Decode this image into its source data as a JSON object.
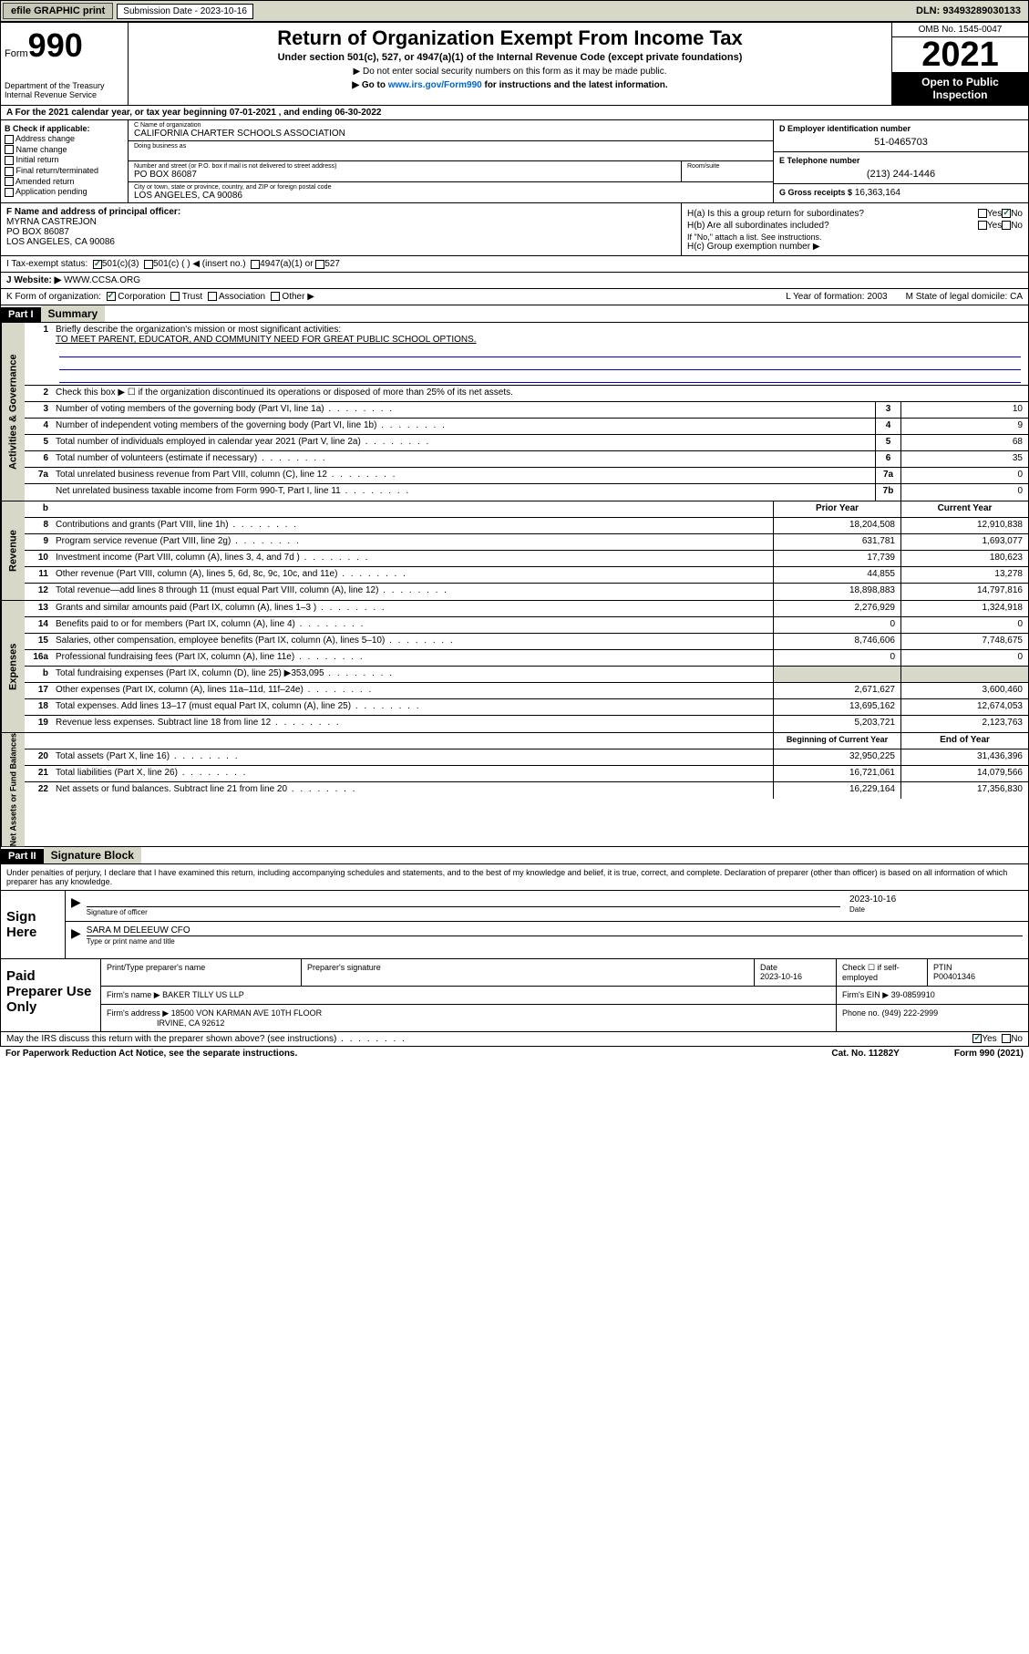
{
  "topbar": {
    "efile": "efile GRAPHIC print",
    "sub_label": "Submission Date - 2023-10-16",
    "dln": "DLN: 93493289030133"
  },
  "header": {
    "form_label": "Form",
    "form_num": "990",
    "dept": "Department of the Treasury\nInternal Revenue Service",
    "title": "Return of Organization Exempt From Income Tax",
    "sub1": "Under section 501(c), 527, or 4947(a)(1) of the Internal Revenue Code (except private foundations)",
    "sub2": "▶ Do not enter social security numbers on this form as it may be made public.",
    "sub3_pre": "▶ Go to ",
    "sub3_link": "www.irs.gov/Form990",
    "sub3_post": " for instructions and the latest information.",
    "omb": "OMB No. 1545-0047",
    "year": "2021",
    "public": "Open to Public Inspection"
  },
  "row_a": "A For the 2021 calendar year, or tax year beginning 07-01-2021   , and ending 06-30-2022",
  "col_b": {
    "label": "B Check if applicable:",
    "addr": "Address change",
    "name": "Name change",
    "initial": "Initial return",
    "final": "Final return/terminated",
    "amended": "Amended return",
    "app": "Application pending"
  },
  "col_c": {
    "name_label": "C Name of organization",
    "name": "CALIFORNIA CHARTER SCHOOLS ASSOCIATION",
    "dba_label": "Doing business as",
    "dba": "",
    "addr_label": "Number and street (or P.O. box if mail is not delivered to street address)",
    "addr": "PO BOX 86087",
    "room_label": "Room/suite",
    "city_label": "City or town, state or province, country, and ZIP or foreign postal code",
    "city": "LOS ANGELES, CA  90086"
  },
  "col_d": {
    "ein_label": "D Employer identification number",
    "ein": "51-0465703",
    "tel_label": "E Telephone number",
    "tel": "(213) 244-1446",
    "gross_label": "G Gross receipts $",
    "gross": "16,363,164"
  },
  "col_f": {
    "label": "F Name and address of principal officer:",
    "name": "MYRNA CASTREJON",
    "addr1": "PO BOX 86087",
    "addr2": "LOS ANGELES, CA  90086"
  },
  "col_h": {
    "a": "H(a)  Is this a group return for subordinates?",
    "b": "H(b)  Are all subordinates included?",
    "b_note": "If \"No,\" attach a list. See instructions.",
    "c": "H(c)  Group exemption number ▶"
  },
  "row_i": {
    "label": "I   Tax-exempt status:",
    "c3": "501(c)(3)",
    "c": "501(c) (  ) ◀ (insert no.)",
    "a1": "4947(a)(1) or",
    "527": "527"
  },
  "row_j": {
    "label": "J   Website: ▶",
    "val": "WWW.CCSA.ORG"
  },
  "row_k": {
    "label": "K Form of organization:",
    "corp": "Corporation",
    "trust": "Trust",
    "assoc": "Association",
    "other": "Other ▶",
    "l": "L Year of formation: 2003",
    "m": "M State of legal domicile: CA"
  },
  "part1": {
    "hdr": "Part I",
    "title": "Summary",
    "l1_label": "Briefly describe the organization's mission or most significant activities:",
    "l1_val": "TO MEET PARENT, EDUCATOR, AND COMMUNITY NEED FOR GREAT PUBLIC SCHOOL OPTIONS.",
    "l2": "Check this box ▶ ☐  if the organization discontinued its operations or disposed of more than 25% of its net assets.",
    "rows_gov": [
      {
        "n": "3",
        "d": "Number of voting members of the governing body (Part VI, line 1a)",
        "b": "3",
        "v": "10"
      },
      {
        "n": "4",
        "d": "Number of independent voting members of the governing body (Part VI, line 1b)",
        "b": "4",
        "v": "9"
      },
      {
        "n": "5",
        "d": "Total number of individuals employed in calendar year 2021 (Part V, line 2a)",
        "b": "5",
        "v": "68"
      },
      {
        "n": "6",
        "d": "Total number of volunteers (estimate if necessary)",
        "b": "6",
        "v": "35"
      },
      {
        "n": "7a",
        "d": "Total unrelated business revenue from Part VIII, column (C), line 12",
        "b": "7a",
        "v": "0"
      },
      {
        "n": "",
        "d": "Net unrelated business taxable income from Form 990-T, Part I, line 11",
        "b": "7b",
        "v": "0"
      }
    ],
    "col_prior": "Prior Year",
    "col_curr": "Current Year",
    "rows_rev": [
      {
        "n": "8",
        "d": "Contributions and grants (Part VIII, line 1h)",
        "p": "18,204,508",
        "c": "12,910,838"
      },
      {
        "n": "9",
        "d": "Program service revenue (Part VIII, line 2g)",
        "p": "631,781",
        "c": "1,693,077"
      },
      {
        "n": "10",
        "d": "Investment income (Part VIII, column (A), lines 3, 4, and 7d )",
        "p": "17,739",
        "c": "180,623"
      },
      {
        "n": "11",
        "d": "Other revenue (Part VIII, column (A), lines 5, 6d, 8c, 9c, 10c, and 11e)",
        "p": "44,855",
        "c": "13,278"
      },
      {
        "n": "12",
        "d": "Total revenue—add lines 8 through 11 (must equal Part VIII, column (A), line 12)",
        "p": "18,898,883",
        "c": "14,797,816"
      }
    ],
    "rows_exp": [
      {
        "n": "13",
        "d": "Grants and similar amounts paid (Part IX, column (A), lines 1–3 )",
        "p": "2,276,929",
        "c": "1,324,918"
      },
      {
        "n": "14",
        "d": "Benefits paid to or for members (Part IX, column (A), line 4)",
        "p": "0",
        "c": "0"
      },
      {
        "n": "15",
        "d": "Salaries, other compensation, employee benefits (Part IX, column (A), lines 5–10)",
        "p": "8,746,606",
        "c": "7,748,675"
      },
      {
        "n": "16a",
        "d": "Professional fundraising fees (Part IX, column (A), line 11e)",
        "p": "0",
        "c": "0"
      },
      {
        "n": "b",
        "d": "Total fundraising expenses (Part IX, column (D), line 25) ▶353,095",
        "p": "",
        "c": "",
        "gray": true
      },
      {
        "n": "17",
        "d": "Other expenses (Part IX, column (A), lines 11a–11d, 11f–24e)",
        "p": "2,671,627",
        "c": "3,600,460"
      },
      {
        "n": "18",
        "d": "Total expenses. Add lines 13–17 (must equal Part IX, column (A), line 25)",
        "p": "13,695,162",
        "c": "12,674,053"
      },
      {
        "n": "19",
        "d": "Revenue less expenses. Subtract line 18 from line 12",
        "p": "5,203,721",
        "c": "2,123,763"
      }
    ],
    "col_beg": "Beginning of Current Year",
    "col_end": "End of Year",
    "rows_net": [
      {
        "n": "20",
        "d": "Total assets (Part X, line 16)",
        "p": "32,950,225",
        "c": "31,436,396"
      },
      {
        "n": "21",
        "d": "Total liabilities (Part X, line 26)",
        "p": "16,721,061",
        "c": "14,079,566"
      },
      {
        "n": "22",
        "d": "Net assets or fund balances. Subtract line 21 from line 20",
        "p": "16,229,164",
        "c": "17,356,830"
      }
    ],
    "side_gov": "Activities & Governance",
    "side_rev": "Revenue",
    "side_exp": "Expenses",
    "side_net": "Net Assets or Fund Balances"
  },
  "part2": {
    "hdr": "Part II",
    "title": "Signature Block",
    "decl": "Under penalties of perjury, I declare that I have examined this return, including accompanying schedules and statements, and to the best of my knowledge and belief, it is true, correct, and complete. Declaration of preparer (other than officer) is based on all information of which preparer has any knowledge.",
    "sign_here": "Sign Here",
    "sig_officer": "Signature of officer",
    "sig_date": "2023-10-16",
    "officer_name": "SARA M DELEEUW CFO",
    "type_name": "Type or print name and title",
    "paid": "Paid Preparer Use Only",
    "prep_name_label": "Print/Type preparer's name",
    "prep_sig_label": "Preparer's signature",
    "date_label": "Date",
    "date_val": "2023-10-16",
    "check_label": "Check ☐ if self-employed",
    "ptin_label": "PTIN",
    "ptin": "P00401346",
    "firm_name_label": "Firm's name    ▶",
    "firm_name": "BAKER TILLY US LLP",
    "firm_ein_label": "Firm's EIN ▶",
    "firm_ein": "39-0859910",
    "firm_addr_label": "Firm's address ▶",
    "firm_addr1": "18500 VON KARMAN AVE 10TH FLOOR",
    "firm_addr2": "IRVINE, CA  92612",
    "phone_label": "Phone no.",
    "phone": "(949) 222-2999",
    "discuss": "May the IRS discuss this return with the preparer shown above? (see instructions)",
    "paperwork": "For Paperwork Reduction Act Notice, see the separate instructions.",
    "cat": "Cat. No. 11282Y",
    "form": "Form 990 (2021)"
  }
}
